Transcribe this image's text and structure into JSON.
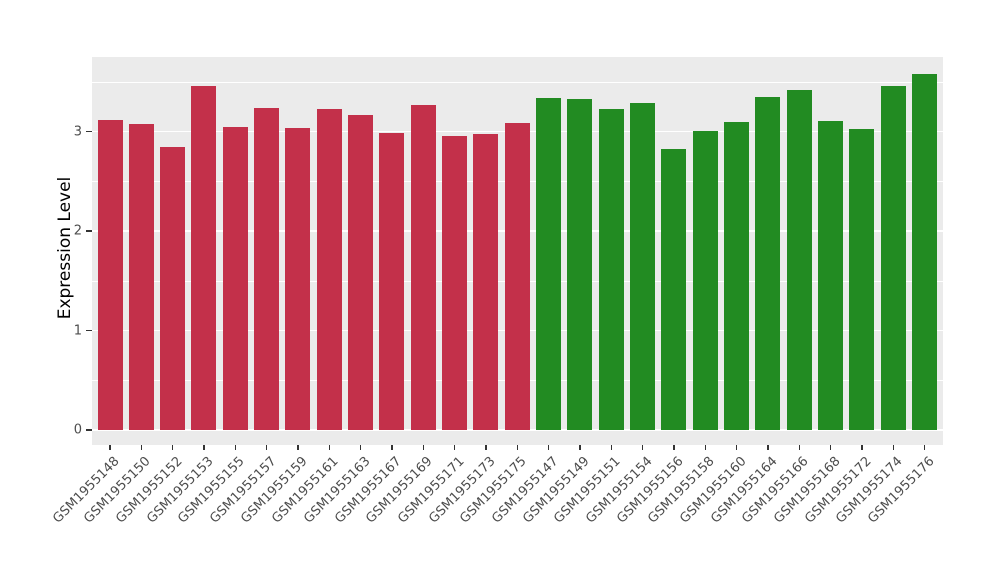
{
  "chart_data": {
    "type": "bar",
    "title": "",
    "xlabel": "",
    "ylabel": "Expression Level",
    "yticks": [
      0,
      1,
      2,
      3
    ],
    "ylim": [
      -0.15,
      3.75
    ],
    "grid": "white major and minor horizontal gridlines on gray panel",
    "legend_position": "none",
    "x_label_rotation_deg": 45,
    "panel_bg_color": "#EBEBEB",
    "gridline_color": "#FFFFFF",
    "tick_text_color": "#4D4D4D",
    "axis_title_color": "#000000",
    "tick_mark_color": "#333333",
    "group_colors": {
      "red": "#C3304A",
      "green": "#228B22"
    },
    "bars": [
      {
        "label": "GSM1955148",
        "value": 3.12,
        "group": "red"
      },
      {
        "label": "GSM1955150",
        "value": 3.08,
        "group": "red"
      },
      {
        "label": "GSM1955152",
        "value": 2.84,
        "group": "red"
      },
      {
        "label": "GSM1955153",
        "value": 3.46,
        "group": "red"
      },
      {
        "label": "GSM1955155",
        "value": 3.05,
        "group": "red"
      },
      {
        "label": "GSM1955157",
        "value": 3.24,
        "group": "red"
      },
      {
        "label": "GSM1955159",
        "value": 3.04,
        "group": "red"
      },
      {
        "label": "GSM1955161",
        "value": 3.23,
        "group": "red"
      },
      {
        "label": "GSM1955163",
        "value": 3.17,
        "group": "red"
      },
      {
        "label": "GSM1955167",
        "value": 2.98,
        "group": "red"
      },
      {
        "label": "GSM1955169",
        "value": 3.27,
        "group": "red"
      },
      {
        "label": "GSM1955171",
        "value": 2.95,
        "group": "red"
      },
      {
        "label": "GSM1955173",
        "value": 2.97,
        "group": "red"
      },
      {
        "label": "GSM1955175",
        "value": 3.09,
        "group": "red"
      },
      {
        "label": "GSM1955147",
        "value": 3.34,
        "group": "green"
      },
      {
        "label": "GSM1955149",
        "value": 3.33,
        "group": "green"
      },
      {
        "label": "GSM1955151",
        "value": 3.23,
        "group": "green"
      },
      {
        "label": "GSM1955154",
        "value": 3.29,
        "group": "green"
      },
      {
        "label": "GSM1955156",
        "value": 2.82,
        "group": "green"
      },
      {
        "label": "GSM1955158",
        "value": 3.01,
        "group": "green"
      },
      {
        "label": "GSM1955160",
        "value": 3.1,
        "group": "green"
      },
      {
        "label": "GSM1955164",
        "value": 3.35,
        "group": "green"
      },
      {
        "label": "GSM1955166",
        "value": 3.42,
        "group": "green"
      },
      {
        "label": "GSM1955168",
        "value": 3.11,
        "group": "green"
      },
      {
        "label": "GSM1955172",
        "value": 3.03,
        "group": "green"
      },
      {
        "label": "GSM1955174",
        "value": 3.46,
        "group": "green"
      },
      {
        "label": "GSM1955176",
        "value": 3.58,
        "group": "green"
      }
    ]
  }
}
